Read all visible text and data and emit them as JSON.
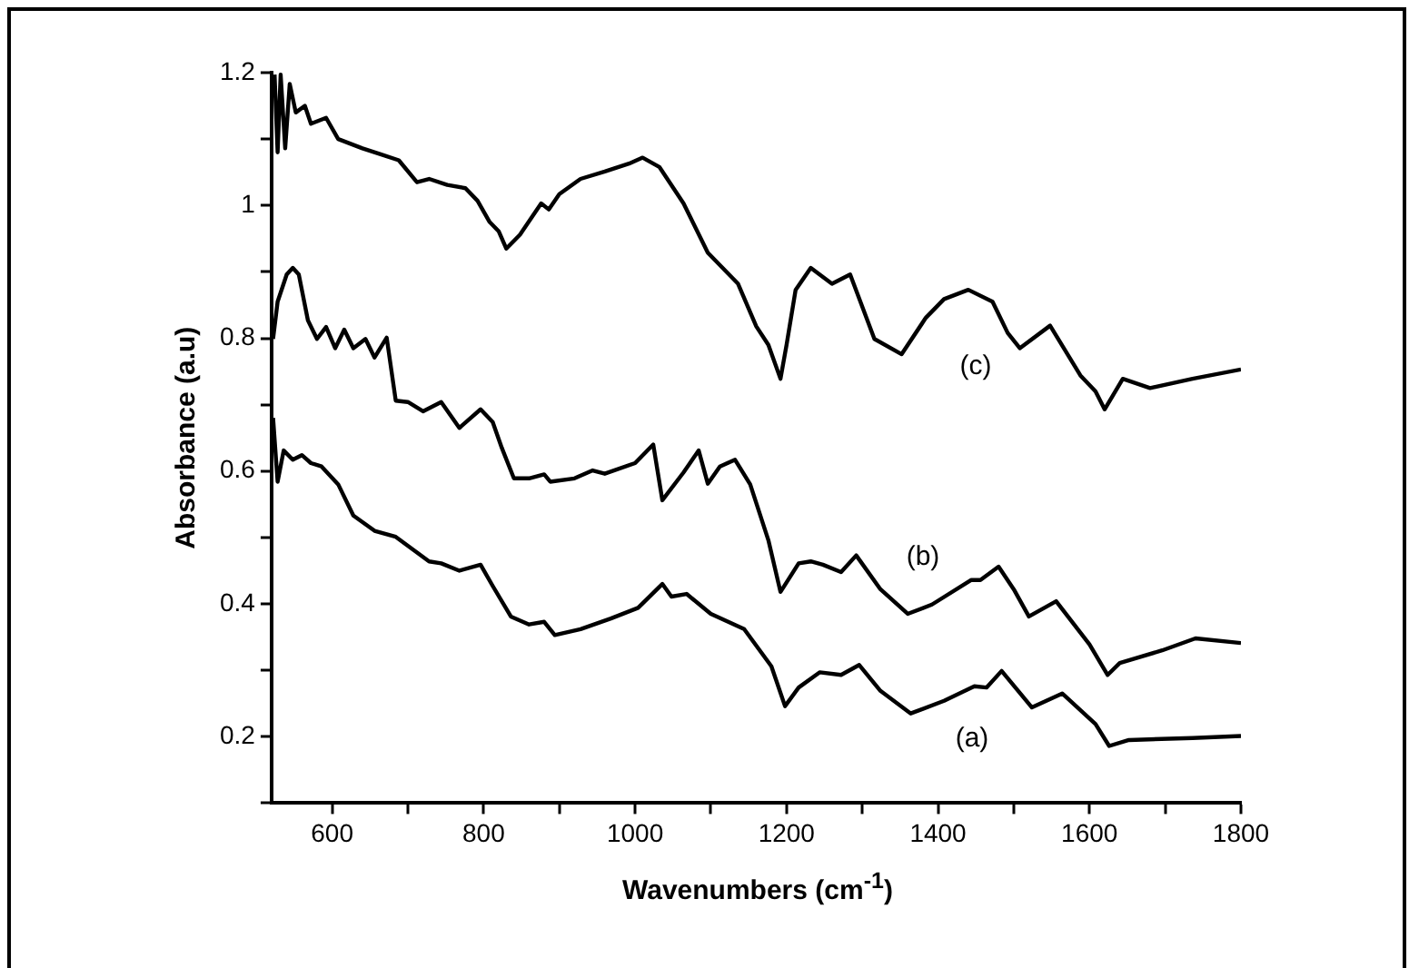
{
  "chart_data": {
    "type": "line",
    "xlabel": "Wavenumbers (cm$^{-1}$)",
    "ylabel": "Absorbance (a.u)",
    "xlim": [
      520,
      1800
    ],
    "ylim": [
      0.1,
      1.2
    ],
    "xticks": [
      600,
      {
        "value": 700,
        "label": null
      },
      800,
      {
        "value": 900,
        "label": null
      },
      1000,
      {
        "value": 1100,
        "label": null
      },
      1200,
      {
        "value": 1300,
        "label": null
      },
      1400,
      {
        "value": 1500,
        "label": null
      },
      1600,
      {
        "value": 1700,
        "label": null
      },
      1800
    ],
    "yticks": [
      {
        "value": 0.1,
        "label": null
      },
      0.2,
      {
        "value": 0.3,
        "label": null
      },
      0.4,
      {
        "value": 0.5,
        "label": null
      },
      0.6,
      {
        "value": 0.7,
        "label": null
      },
      0.8,
      {
        "value": 0.9,
        "label": null
      },
      1.0,
      {
        "value": 1.1,
        "label": null
      },
      1.2
    ],
    "grid": false,
    "legend": false,
    "marker": "none",
    "line_style": "solid",
    "annotations": [
      "(a)",
      "(b)",
      "(c)"
    ],
    "series": [
      {
        "color": "#000000",
        "x": [
          522,
          528,
          536,
          548,
          560,
          572,
          586,
          608,
          628,
          656,
          684,
          728,
          744,
          768,
          796,
          812,
          836,
          860,
          880,
          894,
          928,
          968,
          1004,
          1036,
          1048,
          1068,
          1100,
          1144,
          1180,
          1198,
          1216,
          1244,
          1272,
          1296,
          1324,
          1364,
          1408,
          1448,
          1464,
          1484,
          1524,
          1564,
          1608,
          1626,
          1652,
          1736,
          1800
        ],
        "values": [
          0.68,
          0.584,
          0.631,
          0.617,
          0.624,
          0.612,
          0.607,
          0.58,
          0.533,
          0.51,
          0.501,
          0.464,
          0.461,
          0.45,
          0.459,
          0.427,
          0.381,
          0.369,
          0.373,
          0.353,
          0.362,
          0.378,
          0.394,
          0.43,
          0.411,
          0.415,
          0.385,
          0.362,
          0.306,
          0.246,
          0.274,
          0.297,
          0.293,
          0.308,
          0.269,
          0.235,
          0.254,
          0.276,
          0.274,
          0.299,
          0.244,
          0.265,
          0.219,
          0.186,
          0.195,
          0.198,
          0.201
        ]
      },
      {
        "color": "#000000",
        "x": [
          522,
          528,
          540,
          548,
          556,
          568,
          580,
          592,
          604,
          616,
          628,
          644,
          656,
          672,
          684,
          700,
          720,
          744,
          768,
          796,
          812,
          824,
          840,
          860,
          880,
          888,
          920,
          944,
          960,
          1000,
          1024,
          1036,
          1064,
          1084,
          1096,
          1112,
          1132,
          1152,
          1176,
          1192,
          1216,
          1232,
          1248,
          1272,
          1292,
          1324,
          1360,
          1392,
          1444,
          1456,
          1480,
          1500,
          1520,
          1556,
          1600,
          1624,
          1640,
          1696,
          1740,
          1800
        ],
        "values": [
          0.799,
          0.855,
          0.896,
          0.906,
          0.896,
          0.827,
          0.799,
          0.817,
          0.785,
          0.813,
          0.785,
          0.799,
          0.771,
          0.801,
          0.706,
          0.704,
          0.69,
          0.704,
          0.665,
          0.693,
          0.674,
          0.635,
          0.589,
          0.589,
          0.595,
          0.584,
          0.589,
          0.601,
          0.596,
          0.612,
          0.64,
          0.556,
          0.598,
          0.631,
          0.581,
          0.607,
          0.617,
          0.58,
          0.496,
          0.418,
          0.461,
          0.464,
          0.459,
          0.448,
          0.473,
          0.422,
          0.385,
          0.399,
          0.436,
          0.436,
          0.456,
          0.422,
          0.381,
          0.404,
          0.339,
          0.293,
          0.311,
          0.33,
          0.348,
          0.341
        ]
      },
      {
        "color": "#000000",
        "x": [
          524,
          528,
          532,
          538,
          544,
          552,
          564,
          572,
          592,
          608,
          640,
          664,
          688,
          712,
          728,
          752,
          776,
          792,
          808,
          820,
          830,
          848,
          876,
          886,
          900,
          928,
          960,
          992,
          1010,
          1032,
          1064,
          1096,
          1136,
          1160,
          1176,
          1192,
          1200,
          1212,
          1232,
          1260,
          1284,
          1316,
          1352,
          1384,
          1408,
          1440,
          1472,
          1492,
          1508,
          1548,
          1588,
          1608,
          1620,
          1644,
          1680,
          1736,
          1800
        ],
        "values": [
          1.197,
          1.08,
          1.197,
          1.086,
          1.183,
          1.14,
          1.15,
          1.123,
          1.132,
          1.1,
          1.086,
          1.077,
          1.068,
          1.035,
          1.04,
          1.031,
          1.026,
          1.007,
          0.975,
          0.961,
          0.935,
          0.956,
          1.003,
          0.994,
          1.017,
          1.04,
          1.051,
          1.063,
          1.072,
          1.058,
          1.003,
          0.929,
          0.882,
          0.818,
          0.79,
          0.739,
          0.79,
          0.873,
          0.906,
          0.882,
          0.896,
          0.799,
          0.776,
          0.831,
          0.859,
          0.873,
          0.855,
          0.808,
          0.785,
          0.819,
          0.744,
          0.72,
          0.693,
          0.739,
          0.725,
          0.739,
          0.753
        ]
      }
    ]
  }
}
